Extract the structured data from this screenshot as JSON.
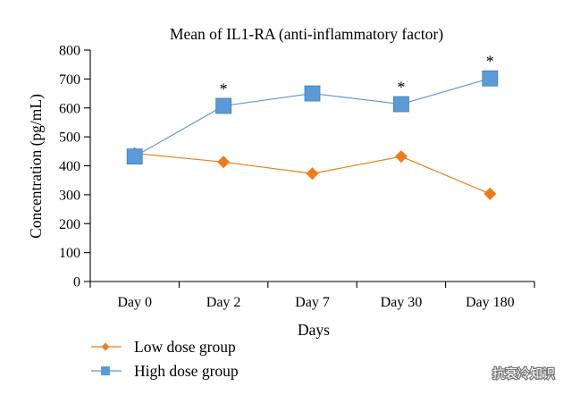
{
  "chart_data": {
    "type": "line",
    "title": "Mean of IL1-RA (anti-inflammatory factor)",
    "xlabel": "Days",
    "ylabel": "Concentration (pg/mL)",
    "categories": [
      "Day 0",
      "Day 2",
      "Day 7",
      "Day 30",
      "Day 180"
    ],
    "ylim": [
      0,
      800
    ],
    "yticks": [
      "0",
      "100",
      "200",
      "300",
      "400",
      "500",
      "600",
      "700",
      "800"
    ],
    "grid": false,
    "legend_position": "bottom-left",
    "series": [
      {
        "name": "Low dose group",
        "marker": "diamond",
        "color": "#ED7D1C",
        "values": [
          443,
          413,
          373,
          432,
          303
        ]
      },
      {
        "name": "High dose group",
        "marker": "square",
        "color": "#5B9BD5",
        "values": [
          432,
          607,
          650,
          613,
          702
        ]
      }
    ],
    "annotations": [
      {
        "category": "Day 2",
        "text": "*"
      },
      {
        "category": "Day 30",
        "text": "*"
      },
      {
        "category": "Day 180",
        "text": "*"
      }
    ]
  },
  "watermark": {
    "text": "抗衰冷知识"
  }
}
